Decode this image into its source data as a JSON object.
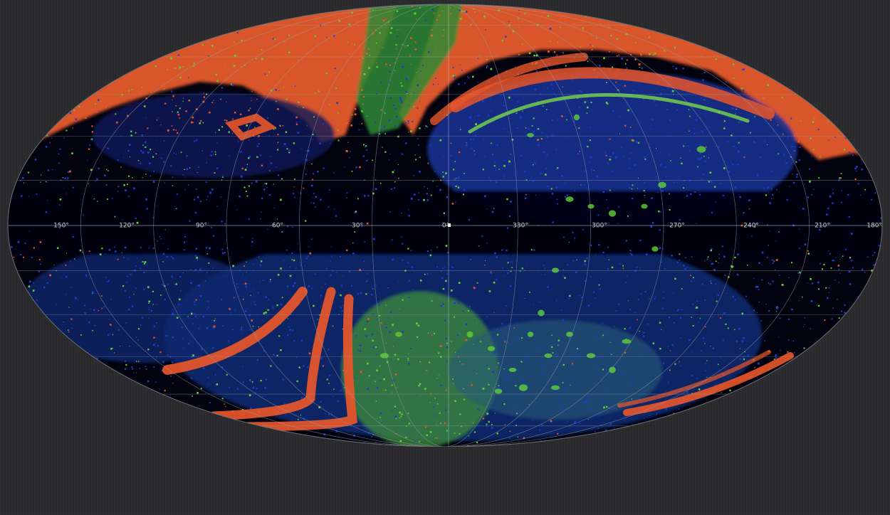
{
  "map": {
    "projection": "mollweide",
    "longitude_labels": [
      "150°",
      "120°",
      "90°",
      "60°",
      "30°",
      "0°",
      "330°",
      "300°",
      "270°",
      "240°",
      "210°",
      "180°"
    ],
    "palette": {
      "background": "#2b2b2d",
      "sky": "#02030f",
      "blue": "#1f3cc8",
      "green": "#5fd03a",
      "orange": "#e8562a",
      "grid": "#9aa0aa"
    },
    "reflection_visible": true
  }
}
